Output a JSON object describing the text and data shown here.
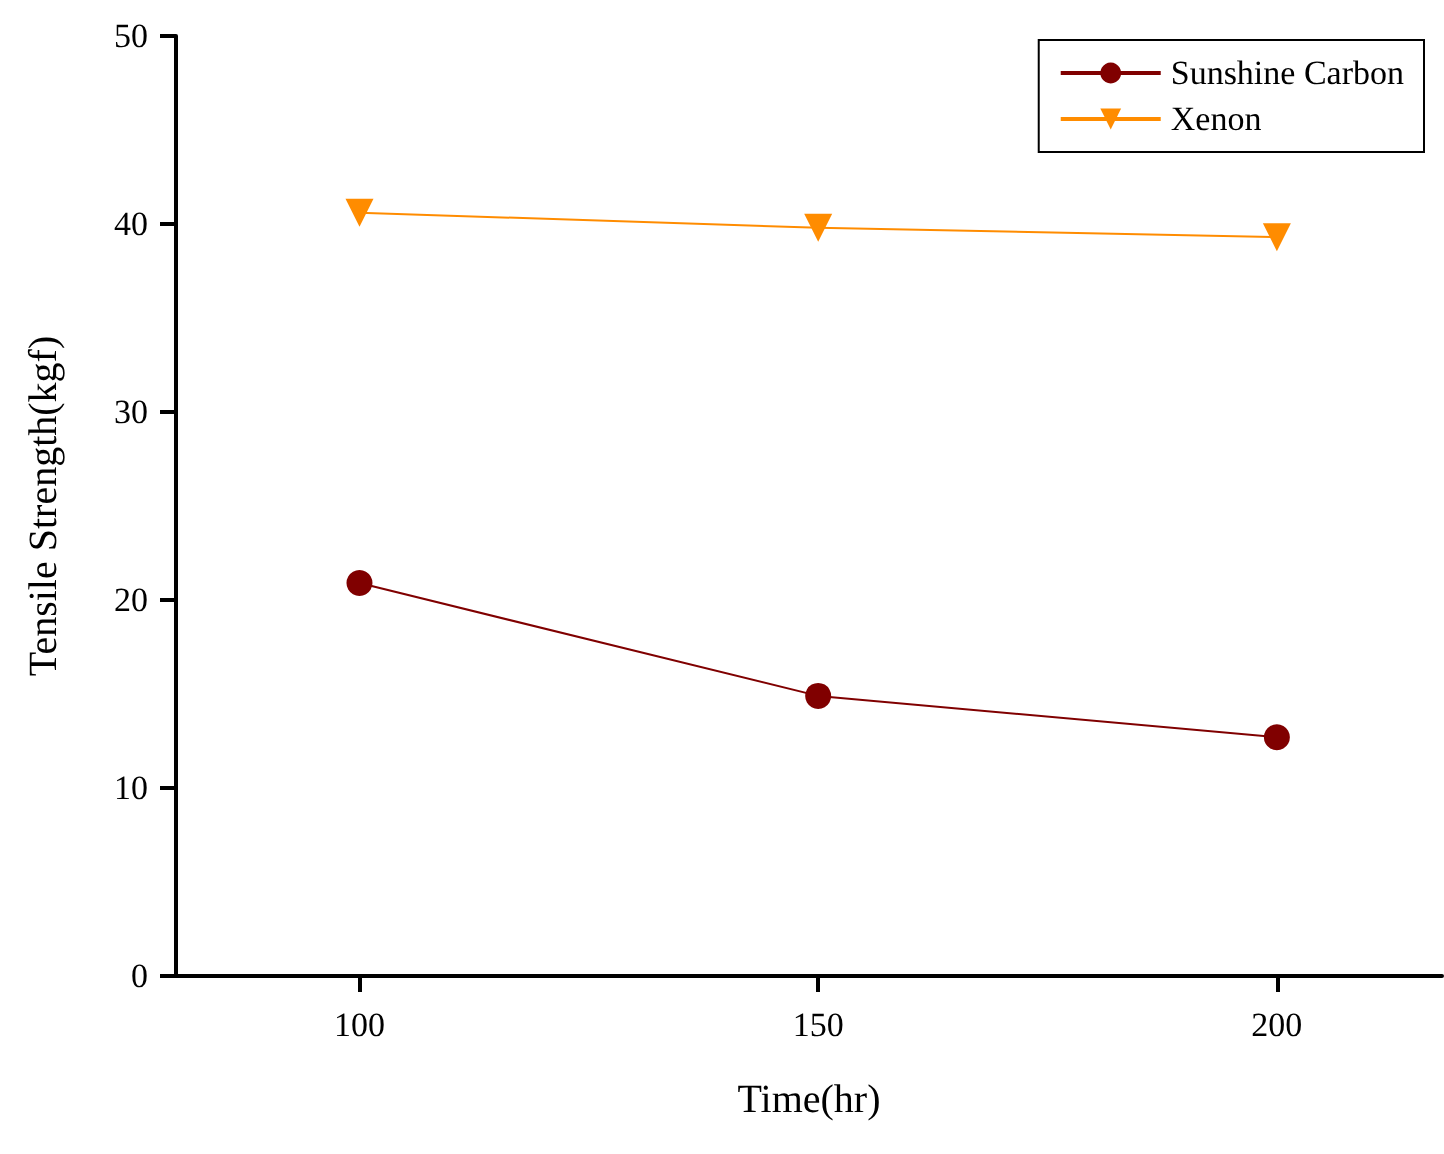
{
  "chart_data": {
    "type": "line",
    "xlabel": "Time(hr)",
    "ylabel": "Tensile Strength(kgf)",
    "x": [
      100,
      150,
      200
    ],
    "series": [
      {
        "name": "Sunshine Carbon",
        "color": "#800000",
        "values": [
          20.9,
          14.9,
          12.7
        ],
        "marker": "circle"
      },
      {
        "name": "Xenon",
        "color": "#ff8c00",
        "values": [
          40.6,
          39.8,
          39.3
        ],
        "marker": "triangle-down"
      }
    ],
    "xlim": [
      80,
      218
    ],
    "xticks": [
      100,
      150,
      200
    ],
    "ylim": [
      0,
      50
    ],
    "yticks": [
      0,
      10,
      20,
      30,
      40,
      50
    ],
    "grid": false,
    "legend": "top right",
    "line_style": "solid"
  }
}
